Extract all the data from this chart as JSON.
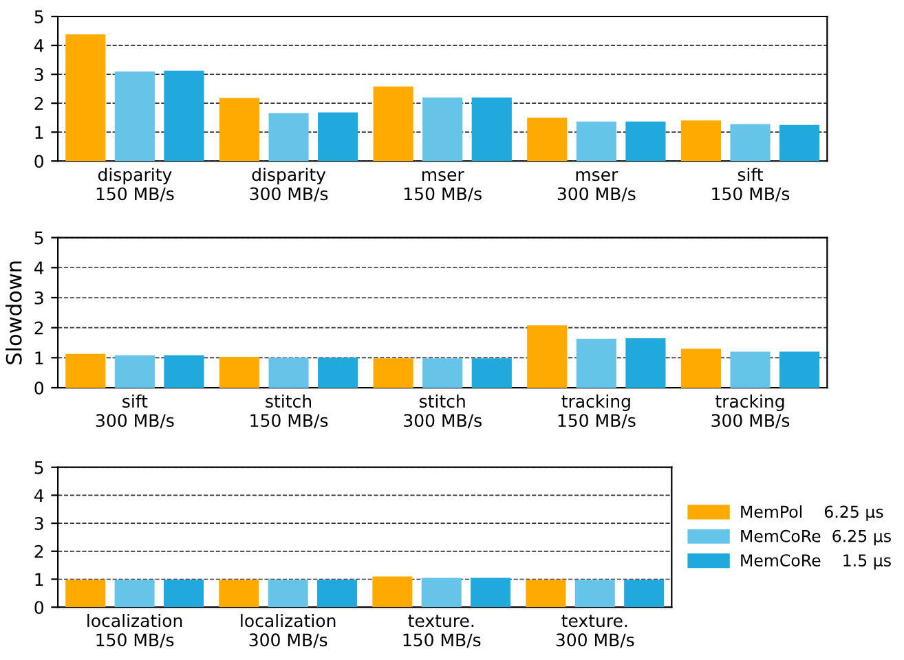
{
  "chart_data": [
    {
      "type": "bar",
      "categories": [
        "disparity\n150 MB/s",
        "disparity\n300 MB/s",
        "mser\n150 MB/s",
        "mser\n300 MB/s",
        "sift\n150 MB/s"
      ],
      "ylim": [
        0,
        5
      ],
      "yticks": [
        0,
        1,
        2,
        3,
        4,
        5
      ],
      "grid": "y",
      "legend": false,
      "series": [
        {
          "color": "#ffaa00",
          "values": [
            4.38,
            2.18,
            2.58,
            1.5,
            1.4
          ]
        },
        {
          "color": "#66c4e8",
          "values": [
            3.1,
            1.66,
            2.2,
            1.37,
            1.28
          ]
        },
        {
          "color": "#21a8dd",
          "values": [
            3.13,
            1.68,
            2.2,
            1.37,
            1.25
          ]
        }
      ]
    },
    {
      "type": "bar",
      "ylabel": "Slowdown",
      "categories": [
        "sift\n300 MB/s",
        "stitch\n150 MB/s",
        "stitch\n300 MB/s",
        "tracking\n150 MB/s",
        "tracking\n300 MB/s"
      ],
      "ylim": [
        0,
        5
      ],
      "yticks": [
        0,
        1,
        2,
        3,
        4,
        5
      ],
      "grid": "y",
      "legend": false,
      "series": [
        {
          "color": "#ffaa00",
          "values": [
            1.13,
            1.03,
            0.98,
            2.08,
            1.3
          ]
        },
        {
          "color": "#66c4e8",
          "values": [
            1.08,
            1.0,
            0.98,
            1.63,
            1.2
          ]
        },
        {
          "color": "#21a8dd",
          "values": [
            1.08,
            1.0,
            0.98,
            1.65,
            1.2
          ]
        }
      ]
    },
    {
      "type": "bar",
      "categories": [
        "localization\n150 MB/s",
        "localization\n300 MB/s",
        "texture.\n150 MB/s",
        "texture.\n300 MB/s"
      ],
      "ylim": [
        0,
        5
      ],
      "yticks": [
        0,
        1,
        2,
        3,
        4,
        5
      ],
      "grid": "y",
      "legend": "right",
      "series": [
        {
          "name": "MemPol    6.25 µs",
          "color": "#ffaa00",
          "values": [
            0.98,
            0.98,
            1.1,
            0.98
          ]
        },
        {
          "name": "MemCoRe  6.25 µs",
          "color": "#66c4e8",
          "values": [
            0.98,
            0.98,
            1.05,
            0.98
          ]
        },
        {
          "name": "MemCoRe    1.5 µs",
          "color": "#21a8dd",
          "values": [
            0.98,
            0.98,
            1.05,
            0.98
          ]
        }
      ]
    }
  ]
}
